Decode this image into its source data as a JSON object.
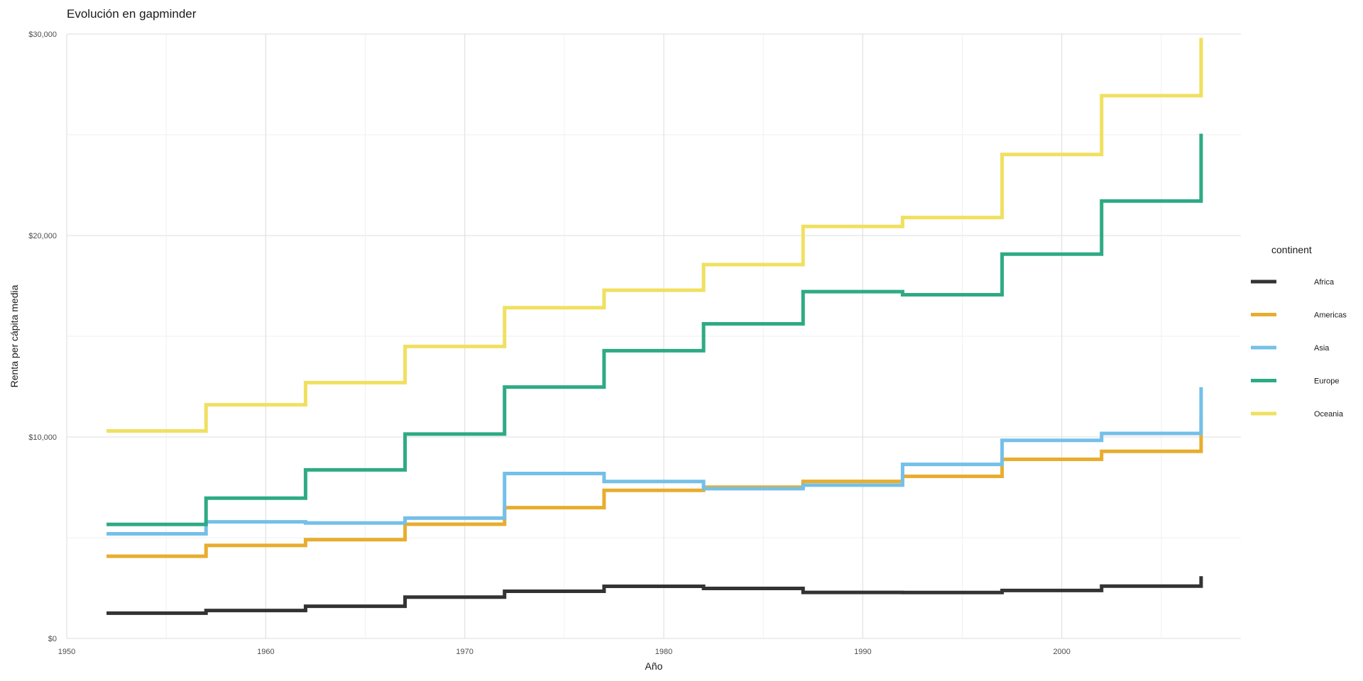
{
  "chart_data": {
    "type": "line",
    "step": true,
    "title": "Evolución en gapminder",
    "xlabel": "Año",
    "ylabel": "Renta per cápita media",
    "xlim": [
      1950,
      2009
    ],
    "ylim": [
      0,
      30000
    ],
    "x_ticks": [
      {
        "value": 1950,
        "label": "1950"
      },
      {
        "value": 1960,
        "label": "1960"
      },
      {
        "value": 1970,
        "label": "1970"
      },
      {
        "value": 1980,
        "label": "1980"
      },
      {
        "value": 1990,
        "label": "1990"
      },
      {
        "value": 2000,
        "label": "2000"
      }
    ],
    "y_ticks": [
      {
        "value": 0,
        "label": "$0"
      },
      {
        "value": 10000,
        "label": "$10,000"
      },
      {
        "value": 20000,
        "label": "$20,000"
      },
      {
        "value": 30000,
        "label": "$30,000"
      }
    ],
    "grid": true,
    "legend": {
      "title": "continent",
      "position": "right"
    },
    "x": [
      1952,
      1957,
      1962,
      1967,
      1972,
      1977,
      1982,
      1987,
      1992,
      1997,
      2002,
      2007
    ],
    "series": [
      {
        "name": "Africa",
        "color": "#333333",
        "values": [
          1253,
          1385,
          1598,
          2050,
          2340,
          2586,
          2482,
          2283,
          2282,
          2379,
          2599,
          3089
        ]
      },
      {
        "name": "Americas",
        "color": "#E8AD2E",
        "values": [
          4079,
          4616,
          4902,
          5668,
          6491,
          7352,
          7507,
          7793,
          8045,
          8889,
          9288,
          11003
        ]
      },
      {
        "name": "Asia",
        "color": "#74C0E8",
        "values": [
          5195,
          5788,
          5729,
          5971,
          8187,
          7791,
          7434,
          7608,
          8640,
          9834,
          10174,
          12473
        ]
      },
      {
        "name": "Europe",
        "color": "#2EAA84",
        "values": [
          5661,
          6963,
          8365,
          10144,
          12480,
          14284,
          15618,
          17214,
          17062,
          19077,
          21712,
          25054
        ]
      },
      {
        "name": "Oceania",
        "color": "#F0E060",
        "values": [
          10298,
          11599,
          12696,
          14495,
          16418,
          17284,
          18555,
          20448,
          20894,
          24024,
          26939,
          29810
        ]
      }
    ]
  }
}
